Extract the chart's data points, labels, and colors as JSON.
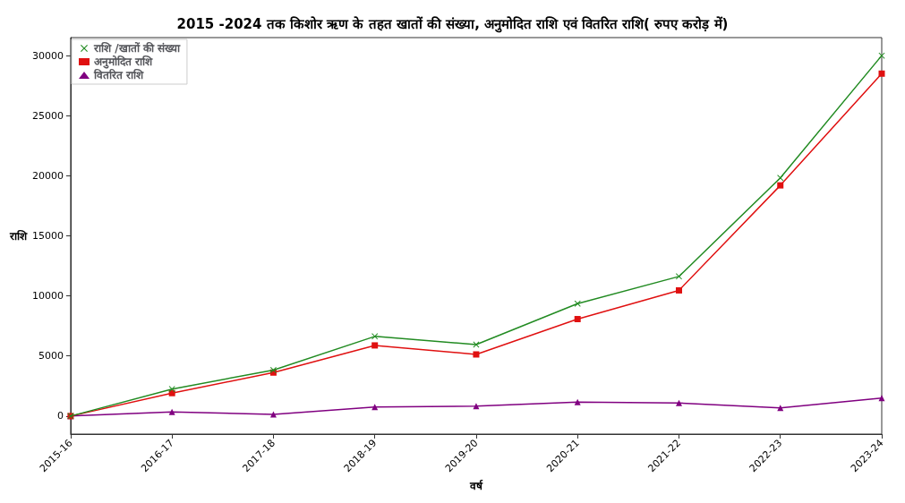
{
  "chart_data": {
    "type": "line",
    "title": "2015 -2024 तक किशोर ऋण के तहत खातों की संख्या, अनुमोदित राशि एवं वितरित राशि( रुपए करोड़ में)",
    "xlabel": "वर्ष",
    "ylabel": "राशि",
    "categories": [
      "2015-16",
      "2016-17",
      "2017-18",
      "2018-19",
      "2019-20",
      "2020-21",
      "2021-22",
      "2022-23",
      "2023-24"
    ],
    "series": [
      {
        "name": "राशि /खातों की संख्या",
        "color": "#228b22",
        "marker": "cross",
        "values": [
          0,
          2250,
          3830,
          6630,
          5950,
          9360,
          11620,
          19820,
          30000
        ]
      },
      {
        "name": "अनुमोदित राशि",
        "color": "#e01010",
        "marker": "square",
        "values": [
          0,
          1910,
          3620,
          5880,
          5130,
          8070,
          10460,
          19200,
          28500
        ]
      },
      {
        "name": "वितरित राशि",
        "color": "#800080",
        "marker": "triangle",
        "values": [
          0,
          340,
          140,
          750,
          820,
          1160,
          1090,
          680,
          1500
        ]
      }
    ],
    "ylim": [
      -1500,
      31500
    ],
    "yticks": [
      0,
      5000,
      10000,
      15000,
      20000,
      25000,
      30000
    ],
    "legend": "top left",
    "line_style": "solid"
  }
}
